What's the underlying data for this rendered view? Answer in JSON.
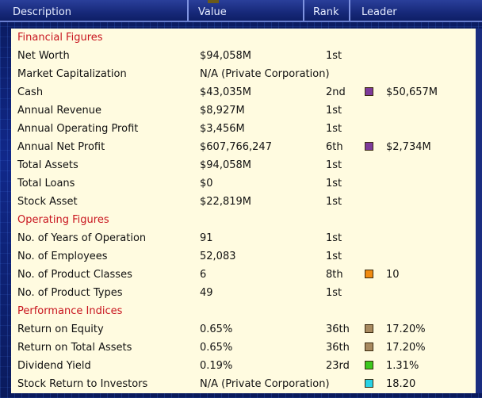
{
  "header": {
    "description": "Description",
    "value": "Value",
    "rank": "Rank",
    "leader": "Leader"
  },
  "sections": [
    {
      "title": "Financial Figures",
      "rows": [
        {
          "desc": "Net Worth",
          "value": "$94,058M",
          "rank": "1st",
          "leader": null
        },
        {
          "desc": "Market Capitalization",
          "value": "N/A (Private Corporation)",
          "rank": "",
          "leader": null
        },
        {
          "desc": "Cash",
          "value": "$43,035M",
          "rank": "2nd",
          "leader": {
            "value": "$50,657M",
            "color": "#7d3a9a"
          }
        },
        {
          "desc": "Annual Revenue",
          "value": "$8,927M",
          "rank": "1st",
          "leader": null
        },
        {
          "desc": "Annual Operating Profit",
          "value": "$3,456M",
          "rank": "1st",
          "leader": null
        },
        {
          "desc": "Annual Net Profit",
          "value": "$607,766,247",
          "rank": "6th",
          "leader": {
            "value": "$2,734M",
            "color": "#7d3a9a"
          }
        },
        {
          "desc": "Total Assets",
          "value": "$94,058M",
          "rank": "1st",
          "leader": null
        },
        {
          "desc": "Total Loans",
          "value": "$0",
          "rank": "1st",
          "leader": null
        },
        {
          "desc": "Stock Asset",
          "value": "$22,819M",
          "rank": "1st",
          "leader": null
        }
      ]
    },
    {
      "title": "Operating Figures",
      "rows": [
        {
          "desc": "No. of Years of Operation",
          "value": "91",
          "rank": "1st",
          "leader": null
        },
        {
          "desc": "No. of Employees",
          "value": "52,083",
          "rank": "1st",
          "leader": null
        },
        {
          "desc": "No. of Product Classes",
          "value": "6",
          "rank": "8th",
          "leader": {
            "value": "10",
            "color": "#f08a10"
          }
        },
        {
          "desc": "No. of Product Types",
          "value": "49",
          "rank": "1st",
          "leader": null
        }
      ]
    },
    {
      "title": "Performance Indices",
      "rows": [
        {
          "desc": "Return on Equity",
          "value": "0.65%",
          "rank": "36th",
          "leader": {
            "value": "17.20%",
            "color": "#a88a60"
          }
        },
        {
          "desc": "Return on Total Assets",
          "value": "0.65%",
          "rank": "36th",
          "leader": {
            "value": "17.20%",
            "color": "#a88a60"
          }
        },
        {
          "desc": "Dividend Yield",
          "value": "0.19%",
          "rank": "23rd",
          "leader": {
            "value": "1.31%",
            "color": "#3cc81e"
          }
        },
        {
          "desc": "Stock Return to Investors",
          "value": "N/A (Private Corporation)",
          "rank": "",
          "leader": {
            "value": "18.20",
            "color": "#28d2e6"
          }
        }
      ]
    }
  ]
}
